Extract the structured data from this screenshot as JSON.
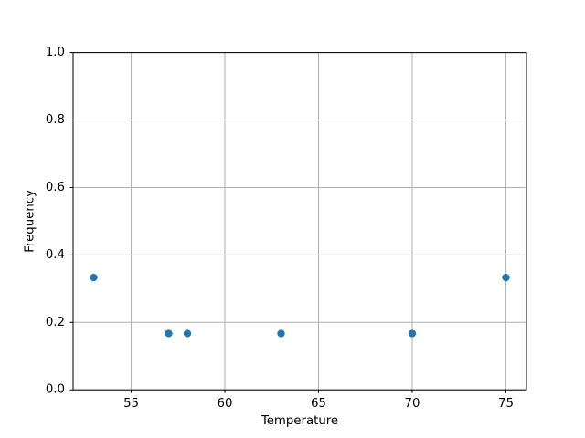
{
  "chart_data": {
    "type": "scatter",
    "title": "",
    "xlabel": "Temperature",
    "ylabel": "Frequency",
    "points": [
      {
        "x": 53,
        "y": 0.333
      },
      {
        "x": 57,
        "y": 0.167
      },
      {
        "x": 58,
        "y": 0.167
      },
      {
        "x": 63,
        "y": 0.167
      },
      {
        "x": 70,
        "y": 0.167
      },
      {
        "x": 75,
        "y": 0.333
      }
    ],
    "xlim": [
      51.9,
      76.1
    ],
    "ylim": [
      0.0,
      1.0
    ],
    "xticks": [
      55,
      60,
      65,
      70,
      75
    ],
    "xticklabels": [
      "55",
      "60",
      "65",
      "70",
      "75"
    ],
    "yticks": [
      0.0,
      0.2,
      0.4,
      0.6,
      0.8,
      1.0
    ],
    "yticklabels": [
      "0.0",
      "0.2",
      "0.4",
      "0.6",
      "0.8",
      "1.0"
    ],
    "grid": true,
    "legend": null,
    "marker_color": "#1f77b4",
    "grid_color": "#b0b0b0",
    "spine_color": "#000000",
    "background_color": "#ffffff"
  }
}
